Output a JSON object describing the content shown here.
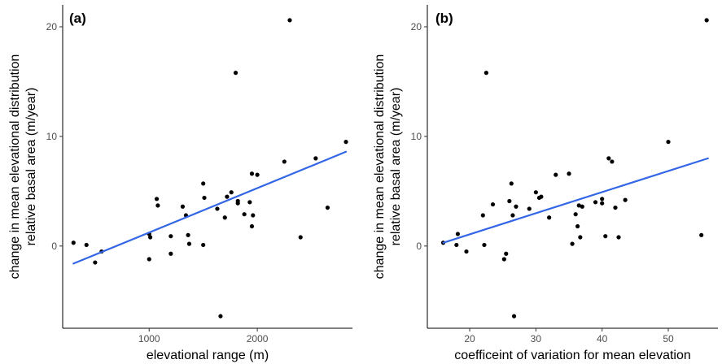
{
  "chart_data": [
    {
      "type": "scatter",
      "panel_label": "(a)",
      "xlabel": "elevational range (m)",
      "ylabel_lines": [
        "change in mean elevational distribution",
        "relative basal area (m/year)"
      ],
      "xlim": [
        200,
        2880
      ],
      "ylim": [
        -7.5,
        22
      ],
      "x_ticks": [
        1000,
        2000
      ],
      "y_ticks": [
        0,
        10,
        20
      ],
      "point_color": "#000000",
      "fit_color": "#3366e6",
      "fit_line": {
        "x": [
          300,
          2820
        ],
        "y": [
          -1.6,
          8.6
        ]
      },
      "points": {
        "x": [
          300,
          420,
          500,
          560,
          1000,
          1010,
          1000,
          1070,
          1080,
          1200,
          1200,
          1310,
          1340,
          1360,
          1370,
          1500,
          1510,
          1500,
          1630,
          1660,
          1700,
          1720,
          1760,
          1800,
          1820,
          1820,
          1880,
          1930,
          1950,
          1950,
          1960,
          2000,
          2250,
          2300,
          2400,
          2540,
          2650,
          2820
        ],
        "y": [
          0.3,
          0.1,
          -1.5,
          -0.5,
          -1.2,
          0.8,
          1.1,
          4.3,
          3.7,
          0.9,
          -0.7,
          3.6,
          2.8,
          1.0,
          0.2,
          5.7,
          4.4,
          0.1,
          3.4,
          -6.4,
          2.6,
          4.5,
          4.9,
          15.8,
          4.1,
          3.9,
          2.9,
          4.0,
          6.6,
          1.8,
          2.8,
          6.5,
          7.7,
          20.6,
          0.8,
          8.0,
          3.5,
          9.5
        ]
      }
    },
    {
      "type": "scatter",
      "panel_label": "(b)",
      "xlabel": "coefficeint of variation for mean elevation",
      "ylabel_lines": [
        "change in mean elevational distribution",
        "relative basal area (m/year)"
      ],
      "xlim": [
        13.6,
        57.5
      ],
      "ylim": [
        -7.5,
        22
      ],
      "x_ticks": [
        20,
        30,
        40,
        50
      ],
      "y_ticks": [
        0,
        10,
        20
      ],
      "point_color": "#000000",
      "fit_color": "#3366e6",
      "fit_line": {
        "x": [
          16,
          56
        ],
        "y": [
          0.3,
          8.0
        ]
      },
      "points": {
        "x": [
          16,
          18,
          18.2,
          19.5,
          22,
          22.2,
          22.5,
          23.5,
          25.2,
          25.5,
          26,
          26.3,
          26.5,
          26.7,
          27,
          29,
          30,
          30.5,
          30.8,
          32,
          33,
          35,
          35.5,
          36,
          36.3,
          36.5,
          36.7,
          37,
          39,
          40,
          40,
          40.5,
          41,
          41.5,
          42,
          42.5,
          43.5,
          50,
          55,
          55.8
        ],
        "y": [
          0.3,
          0.1,
          1.1,
          -0.5,
          2.8,
          0.1,
          15.8,
          3.8,
          -1.2,
          -0.7,
          4.1,
          5.7,
          2.8,
          -6.4,
          3.6,
          3.4,
          4.9,
          4.4,
          4.5,
          2.6,
          6.5,
          6.6,
          0.2,
          2.9,
          1.8,
          3.7,
          0.8,
          3.6,
          4.0,
          3.9,
          4.3,
          0.9,
          8.0,
          7.7,
          3.5,
          0.8,
          4.2,
          9.5,
          1.0,
          20.6
        ]
      }
    }
  ]
}
